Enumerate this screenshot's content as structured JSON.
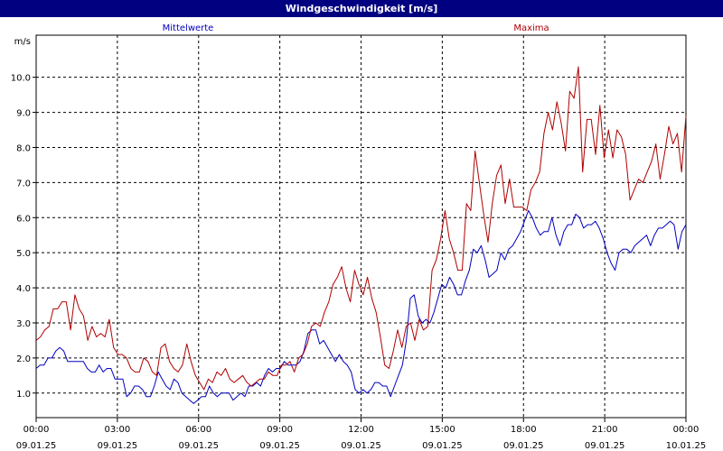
{
  "window": {
    "title": "Windgeschwindigkeit [m/s]"
  },
  "chart_data": {
    "type": "line",
    "title": "Windgeschwindigkeit [m/s]",
    "ylabel": "m/s",
    "xlabel": "",
    "ylim": [
      0.3,
      11.2
    ],
    "xlim": [
      0,
      24
    ],
    "grid": true,
    "legend_placement": "top",
    "yticks": [
      "1.0",
      "2.0",
      "3.0",
      "4.0",
      "5.0",
      "6.0",
      "7.0",
      "8.0",
      "9.0",
      "10.0"
    ],
    "xticks": [
      {
        "time": "00:00",
        "date": "09.01.25"
      },
      {
        "time": "03:00",
        "date": "09.01.25"
      },
      {
        "time": "06:00",
        "date": "09.01.25"
      },
      {
        "time": "09:00",
        "date": "09.01.25"
      },
      {
        "time": "12:00",
        "date": "09.01.25"
      },
      {
        "time": "15:00",
        "date": "09.01.25"
      },
      {
        "time": "18:00",
        "date": "09.01.25"
      },
      {
        "time": "21:00",
        "date": "09.01.25"
      },
      {
        "time": "00:00",
        "date": "10.01.25"
      }
    ],
    "x_step_hours": 0.1667,
    "series": [
      {
        "name": "Mittelwerte",
        "color": "#0000c0",
        "values": [
          1.7,
          1.8,
          1.8,
          2.0,
          2.0,
          2.2,
          2.3,
          2.2,
          1.9,
          1.9,
          1.9,
          1.9,
          1.9,
          1.7,
          1.6,
          1.6,
          1.8,
          1.6,
          1.7,
          1.7,
          1.4,
          1.4,
          1.4,
          0.9,
          1.0,
          1.2,
          1.2,
          1.1,
          0.9,
          0.9,
          1.2,
          1.6,
          1.4,
          1.2,
          1.1,
          1.4,
          1.3,
          1.0,
          0.9,
          0.8,
          0.7,
          0.8,
          0.9,
          0.9,
          1.2,
          1.0,
          0.9,
          1.0,
          1.0,
          1.0,
          0.8,
          0.9,
          1.0,
          0.9,
          1.2,
          1.2,
          1.3,
          1.2,
          1.5,
          1.7,
          1.6,
          1.7,
          1.7,
          1.9,
          1.8,
          1.8,
          1.8,
          1.9,
          2.2,
          2.7,
          2.8,
          2.8,
          2.4,
          2.5,
          2.3,
          2.1,
          1.9,
          2.1,
          1.9,
          1.8,
          1.6,
          1.1,
          1.0,
          1.1,
          1.0,
          1.1,
          1.3,
          1.3,
          1.2,
          1.2,
          0.9,
          1.2,
          1.5,
          1.8,
          2.5,
          3.7,
          3.8,
          3.2,
          3.0,
          3.1,
          3.0,
          3.3,
          3.7,
          4.1,
          4.0,
          4.3,
          4.1,
          3.8,
          3.8,
          4.2,
          4.5,
          5.1,
          5.0,
          5.2,
          4.8,
          4.3,
          4.4,
          4.5,
          5.0,
          4.8,
          5.1,
          5.2,
          5.4,
          5.6,
          5.9,
          6.2,
          6.0,
          5.7,
          5.5,
          5.6,
          5.6,
          6.0,
          5.5,
          5.2,
          5.6,
          5.8,
          5.8,
          6.1,
          6.0,
          5.7,
          5.8,
          5.8,
          5.9,
          5.7,
          5.4,
          5.0,
          4.7,
          4.5,
          5.0,
          5.1,
          5.1,
          5.0,
          5.2,
          5.3,
          5.4,
          5.5,
          5.2,
          5.5,
          5.7,
          5.7,
          5.8,
          5.9,
          5.8,
          5.1,
          5.6,
          5.8
        ]
      },
      {
        "name": "Maxima",
        "color": "#b00000",
        "values": [
          2.5,
          2.6,
          2.8,
          2.9,
          3.4,
          3.4,
          3.6,
          3.6,
          2.8,
          3.8,
          3.4,
          3.2,
          2.5,
          2.9,
          2.6,
          2.7,
          2.6,
          3.1,
          2.3,
          2.1,
          2.1,
          2.0,
          1.7,
          1.6,
          1.6,
          2.0,
          1.9,
          1.6,
          1.5,
          2.3,
          2.4,
          1.9,
          1.7,
          1.6,
          1.8,
          2.4,
          1.9,
          1.5,
          1.3,
          1.1,
          1.4,
          1.3,
          1.6,
          1.5,
          1.7,
          1.4,
          1.3,
          1.4,
          1.5,
          1.3,
          1.2,
          1.3,
          1.4,
          1.4,
          1.6,
          1.5,
          1.5,
          1.8,
          1.8,
          1.9,
          1.6,
          2.0,
          2.1,
          2.4,
          2.9,
          3.0,
          2.9,
          3.3,
          3.6,
          4.1,
          4.3,
          4.6,
          4.0,
          3.6,
          4.5,
          4.1,
          3.8,
          4.3,
          3.7,
          3.3,
          2.6,
          1.8,
          1.7,
          2.2,
          2.8,
          2.3,
          2.9,
          3.0,
          2.5,
          3.1,
          2.8,
          2.9,
          4.5,
          4.8,
          5.4,
          6.2,
          5.4,
          5.0,
          4.5,
          4.5,
          6.4,
          6.2,
          7.9,
          7.0,
          6.1,
          5.3,
          6.4,
          7.2,
          7.5,
          6.4,
          7.1,
          6.3,
          6.3,
          6.3,
          6.2,
          6.8,
          7.0,
          7.3,
          8.4,
          9.0,
          8.5,
          9.3,
          8.7,
          7.9,
          9.6,
          9.4,
          10.3,
          7.3,
          8.8,
          8.8,
          7.8,
          9.2,
          7.7,
          8.5,
          7.7,
          8.5,
          8.3,
          7.8,
          6.5,
          6.8,
          7.1,
          7.0,
          7.3,
          7.6,
          8.1,
          7.1,
          7.8,
          8.6,
          8.1,
          8.4,
          7.3,
          8.9
        ]
      }
    ]
  }
}
